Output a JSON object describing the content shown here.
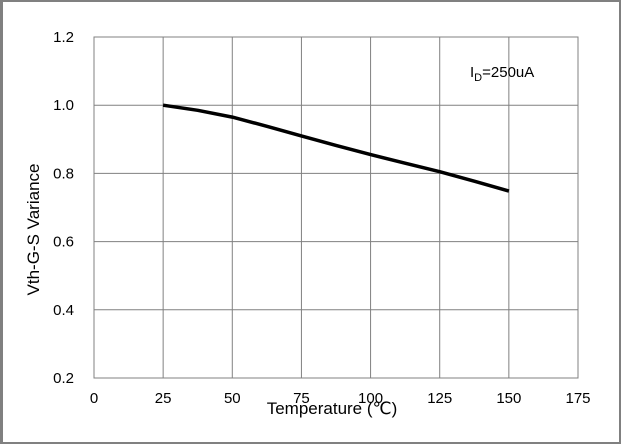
{
  "chart_data": {
    "type": "line",
    "xlabel": "Temperature (℃)",
    "ylabel": "Vth-G-S Variance",
    "xlim": [
      0,
      175
    ],
    "ylim": [
      0.2,
      1.2
    ],
    "x_ticks": [
      0,
      25,
      50,
      75,
      100,
      125,
      150,
      175
    ],
    "y_ticks": [
      0.2,
      0.4,
      0.6,
      0.8,
      1.0,
      1.2
    ],
    "y_tick_labels": [
      "0.2",
      "0.4",
      "0.6",
      "0.8",
      "1.0",
      "1.2"
    ],
    "grid": true,
    "series": [
      {
        "x": [
          25,
          37.5,
          50,
          62.5,
          75,
          87.5,
          100,
          112.5,
          125,
          137.5,
          150
        ],
        "y": [
          1.0,
          0.985,
          0.965,
          0.938,
          0.91,
          0.882,
          0.855,
          0.83,
          0.805,
          0.777,
          0.748
        ],
        "color": "#000000"
      }
    ],
    "annotation": {
      "main": "I",
      "sub": "D",
      "rest": "=250uA"
    }
  }
}
